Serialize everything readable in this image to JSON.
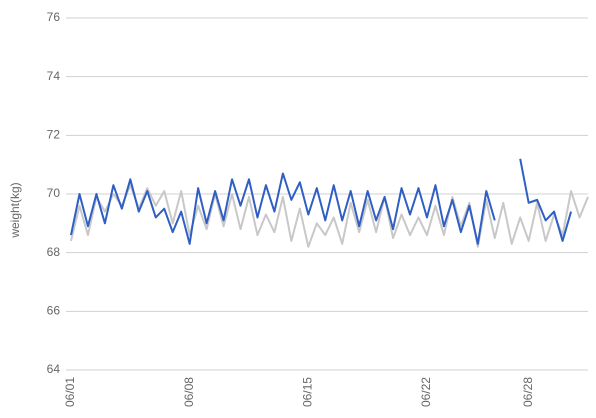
{
  "chart_data": {
    "type": "line",
    "y_label": "weight(kg)",
    "categories": [
      "06/01",
      null,
      null,
      null,
      null,
      null,
      null,
      null,
      null,
      null,
      null,
      null,
      null,
      null,
      "06/08",
      null,
      null,
      null,
      null,
      null,
      null,
      null,
      null,
      null,
      null,
      null,
      null,
      null,
      "06/15",
      null,
      null,
      null,
      null,
      null,
      null,
      null,
      null,
      null,
      null,
      null,
      null,
      null,
      "06/22",
      null,
      null,
      null,
      null,
      null,
      null,
      null,
      null,
      null,
      null,
      null,
      "06/28",
      null,
      null,
      null,
      null,
      null,
      null,
      null
    ],
    "series": [
      {
        "color": "#c8c8c8",
        "values": [
          68.4,
          69.6,
          68.6,
          69.9,
          69.4,
          70.0,
          69.6,
          70.3,
          69.5,
          70.2,
          69.6,
          70.1,
          69.0,
          70.1,
          68.6,
          69.6,
          68.8,
          70.0,
          68.9,
          70.0,
          68.8,
          69.9,
          68.6,
          69.3,
          68.7,
          69.9,
          68.4,
          69.5,
          68.2,
          69.0,
          68.6,
          69.2,
          68.3,
          69.7,
          68.7,
          69.8,
          68.7,
          69.9,
          68.5,
          69.3,
          68.6,
          69.2,
          68.6,
          69.6,
          68.6,
          69.9,
          68.9,
          69.7,
          68.2,
          69.8,
          68.5,
          69.7,
          68.3,
          69.2,
          68.4,
          69.7,
          68.4,
          69.3,
          68.6,
          70.1,
          69.2,
          69.9
        ]
      },
      {
        "color": "#2f5fc4",
        "values": [
          68.6,
          70.0,
          68.9,
          70.0,
          69.0,
          70.3,
          69.5,
          70.5,
          69.4,
          70.1,
          69.2,
          69.5,
          68.7,
          69.4,
          68.3,
          70.2,
          69.0,
          70.1,
          69.1,
          70.5,
          69.6,
          70.5,
          69.2,
          70.3,
          69.4,
          70.7,
          69.8,
          70.4,
          69.3,
          70.2,
          69.1,
          70.3,
          69.1,
          70.1,
          68.9,
          70.1,
          69.1,
          69.9,
          68.8,
          70.2,
          69.3,
          70.2,
          69.2,
          70.3,
          68.9,
          69.8,
          68.7,
          69.6,
          68.3,
          70.1,
          69.1,
          null,
          null,
          71.2,
          69.7,
          69.8,
          69.1,
          69.4,
          68.4,
          69.4,
          null,
          null
        ]
      }
    ],
    "ylim": [
      64,
      76
    ],
    "yticks": [
      64,
      66,
      68,
      70,
      72,
      74,
      76
    ],
    "grid": true
  }
}
